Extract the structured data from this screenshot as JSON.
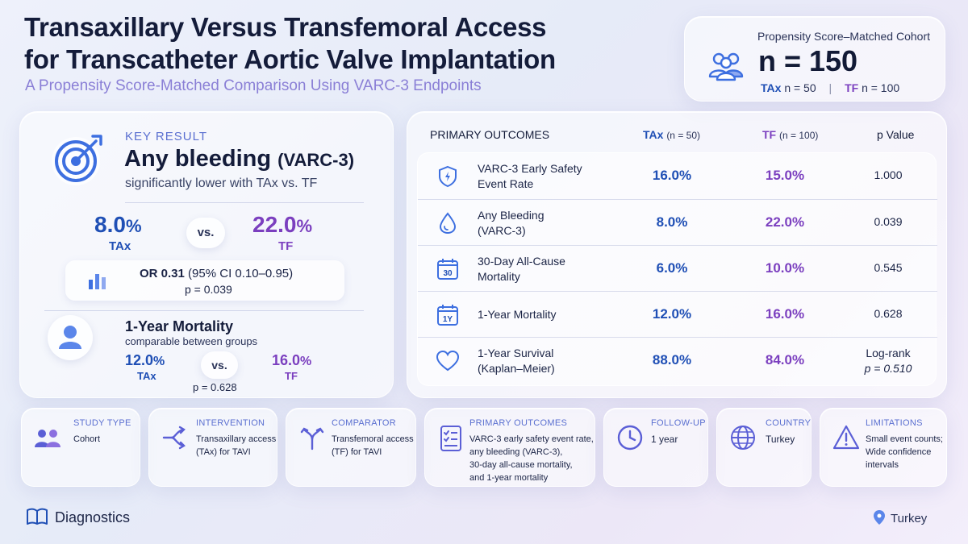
{
  "header": {
    "title_line1": "Transaxillary Versus Transfemoral Access",
    "title_line2": "for Transcatheter Aortic Valve Implantation",
    "subtitle": "A Propensity Score-Matched Comparison Using VARC-3 Endpoints"
  },
  "cohort": {
    "label": "Propensity Score–Matched Cohort",
    "total": "n = 150",
    "tax_label": "TAx",
    "tax_n": "n = 50",
    "sep": "|",
    "tf_label": "TF",
    "tf_n": "n = 100"
  },
  "key_result": {
    "label": "KEY RESULT",
    "headline": "Any bleeding",
    "headline_suffix": "(VARC-3)",
    "subtext": "significantly lower with TAx vs. TF",
    "tax_value": "8.0",
    "tf_value": "22.0",
    "pct": "%",
    "tax_label": "TAx",
    "tf_label": "TF",
    "vs": "vs.",
    "or_value": "OR 0.31",
    "or_ci": "(95% CI 0.10–0.95)",
    "or_p": "p = 0.039",
    "mortality_head": "1-Year Mortality",
    "mortality_sub": "comparable between groups",
    "mort_tax": "12.0",
    "mort_tf": "16.0",
    "mort_p": "p = 0.628"
  },
  "table": {
    "title": "PRIMARY OUTCOMES",
    "col_tax": "TAx",
    "col_tax_n": "(n = 50)",
    "col_tf": "TF",
    "col_tf_n": "(n = 100)",
    "col_p": "p Value",
    "rows": [
      {
        "icon": "shield-icon",
        "name_line1": "VARC-3 Early Safety",
        "name_line2": "Event Rate",
        "tax": "16.0%",
        "tf": "15.0%",
        "p": "1.000"
      },
      {
        "icon": "drop-icon",
        "name_line1": "Any Bleeding",
        "name_line2": "(VARC-3)",
        "tax": "8.0%",
        "tf": "22.0%",
        "p": "0.039"
      },
      {
        "icon": "calendar-30-icon",
        "icon_text": "30",
        "name_line1": "30-Day All-Cause",
        "name_line2": "Mortality",
        "tax": "6.0%",
        "tf": "10.0%",
        "p": "0.545"
      },
      {
        "icon": "calendar-1y-icon",
        "icon_text": "1Y",
        "name_line1": "1-Year Mortality",
        "tax": "12.0%",
        "tf": "16.0%",
        "p": "0.628"
      },
      {
        "icon": "heart-icon",
        "name_line1": "1-Year Survival",
        "name_line2": "(Kaplan–Meier)",
        "tax": "88.0%",
        "tf": "84.0%",
        "p_line1": "Log-rank",
        "p_line2": "p = 0.510"
      }
    ]
  },
  "cards": [
    {
      "label": "STUDY TYPE",
      "value": "Cohort",
      "icon": "people-icon"
    },
    {
      "label": "INTERVENTION",
      "value_line1": "Transaxillary access",
      "value_line2": "(TAx) for TAVI",
      "icon": "branch-icon"
    },
    {
      "label": "COMPARATOR",
      "value_line1": "Transfemoral access",
      "value_line2": "(TF) for TAVI",
      "icon": "merge-icon"
    },
    {
      "label": "PRIMARY OUTCOMES",
      "value_line1": "VARC-3 early safety event rate,",
      "value_line2": "any bleeding (VARC-3),",
      "value_line3": "30-day all-cause mortality,",
      "value_line4": "and 1-year mortality",
      "icon": "checklist-icon"
    },
    {
      "label": "FOLLOW-UP",
      "value": "1 year",
      "icon": "clock-icon"
    },
    {
      "label": "COUNTRY",
      "value": "Turkey",
      "icon": "globe-icon"
    },
    {
      "label": "LIMITATIONS",
      "value_line1": "Small event counts;",
      "value_line2": "Wide confidence",
      "value_line3": "intervals",
      "icon": "warning-icon"
    }
  ],
  "footer": {
    "left": "Diagnostics",
    "right": "Turkey"
  },
  "colors": {
    "tax": "#1f4fb5",
    "tf": "#7b3fbf",
    "accent": "#5a6fd0"
  }
}
